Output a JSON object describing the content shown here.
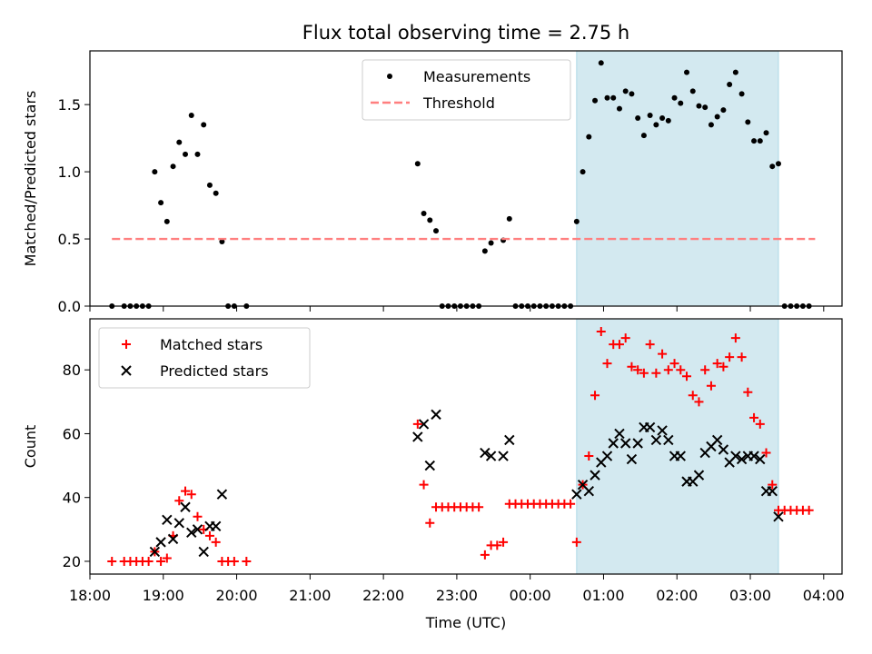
{
  "title": "Flux total observing time = 2.75 h",
  "chart_data": [
    {
      "type": "scatter",
      "ylabel": "Matched/Predicted stars",
      "xlim": [
        "18:00",
        "04:15"
      ],
      "ylim": [
        0,
        1.9
      ],
      "yticks": [
        0.0,
        0.5,
        1.0,
        1.5
      ],
      "yticklabels": [
        "0.0",
        "0.5",
        "1.0",
        "1.5"
      ],
      "shaded_interval": [
        "00:38",
        "03:23"
      ],
      "legend_position": "upper-center",
      "series": [
        {
          "name": "Measurements",
          "marker": "dot",
          "color": "#000000",
          "points": [
            [
              "18:18",
              0
            ],
            [
              "18:28",
              0
            ],
            [
              "18:33",
              0
            ],
            [
              "18:38",
              0
            ],
            [
              "18:43",
              0
            ],
            [
              "18:48",
              0
            ],
            [
              "18:53",
              1.0
            ],
            [
              "18:58",
              0.77
            ],
            [
              "19:03",
              0.63
            ],
            [
              "19:08",
              1.04
            ],
            [
              "19:13",
              1.22
            ],
            [
              "19:18",
              1.13
            ],
            [
              "19:23",
              1.42
            ],
            [
              "19:28",
              1.13
            ],
            [
              "19:33",
              1.35
            ],
            [
              "19:38",
              0.9
            ],
            [
              "19:43",
              0.84
            ],
            [
              "19:48",
              0.48
            ],
            [
              "19:53",
              0
            ],
            [
              "19:58",
              0
            ],
            [
              "20:08",
              0
            ],
            [
              "22:28",
              1.06
            ],
            [
              "22:33",
              0.69
            ],
            [
              "22:38",
              0.64
            ],
            [
              "22:43",
              0.56
            ],
            [
              "22:48",
              0
            ],
            [
              "22:53",
              0
            ],
            [
              "22:58",
              0
            ],
            [
              "23:03",
              0
            ],
            [
              "23:08",
              0
            ],
            [
              "23:13",
              0
            ],
            [
              "23:18",
              0
            ],
            [
              "23:23",
              0.41
            ],
            [
              "23:28",
              0.47
            ],
            [
              "23:38",
              0.49
            ],
            [
              "23:43",
              0.65
            ],
            [
              "23:48",
              0
            ],
            [
              "23:53",
              0
            ],
            [
              "23:58",
              0
            ],
            [
              "00:03",
              0
            ],
            [
              "00:08",
              0
            ],
            [
              "00:13",
              0
            ],
            [
              "00:18",
              0
            ],
            [
              "00:23",
              0
            ],
            [
              "00:28",
              0
            ],
            [
              "00:33",
              0
            ],
            [
              "00:38",
              0.63
            ],
            [
              "00:43",
              1.0
            ],
            [
              "00:48",
              1.26
            ],
            [
              "00:53",
              1.53
            ],
            [
              "00:58",
              1.81
            ],
            [
              "01:03",
              1.55
            ],
            [
              "01:08",
              1.55
            ],
            [
              "01:13",
              1.47
            ],
            [
              "01:18",
              1.6
            ],
            [
              "01:23",
              1.58
            ],
            [
              "01:28",
              1.4
            ],
            [
              "01:33",
              1.27
            ],
            [
              "01:38",
              1.42
            ],
            [
              "01:43",
              1.35
            ],
            [
              "01:48",
              1.4
            ],
            [
              "01:53",
              1.38
            ],
            [
              "01:58",
              1.55
            ],
            [
              "02:03",
              1.51
            ],
            [
              "02:08",
              1.74
            ],
            [
              "02:13",
              1.6
            ],
            [
              "02:18",
              1.49
            ],
            [
              "02:23",
              1.48
            ],
            [
              "02:28",
              1.35
            ],
            [
              "02:33",
              1.41
            ],
            [
              "02:38",
              1.46
            ],
            [
              "02:43",
              1.65
            ],
            [
              "02:48",
              1.74
            ],
            [
              "02:53",
              1.58
            ],
            [
              "02:58",
              1.37
            ],
            [
              "03:03",
              1.23
            ],
            [
              "03:08",
              1.23
            ],
            [
              "03:13",
              1.29
            ],
            [
              "03:18",
              1.04
            ],
            [
              "03:23",
              1.06
            ],
            [
              "03:28",
              0
            ],
            [
              "03:33",
              0
            ],
            [
              "03:38",
              0
            ],
            [
              "03:43",
              0
            ],
            [
              "03:48",
              0
            ]
          ]
        },
        {
          "name": "Threshold",
          "line": "dashed",
          "color": "#ff7f7f",
          "points": [
            [
              "18:18",
              0.5
            ],
            [
              "03:53",
              0.5
            ]
          ]
        }
      ]
    },
    {
      "type": "scatter",
      "xlabel": "Time (UTC)",
      "ylabel": "Count",
      "xlim": [
        "18:00",
        "04:15"
      ],
      "ylim": [
        16,
        96
      ],
      "xticks": [
        "18:00",
        "19:00",
        "20:00",
        "21:00",
        "22:00",
        "23:00",
        "00:00",
        "01:00",
        "02:00",
        "03:00",
        "04:00"
      ],
      "yticks": [
        20,
        40,
        60,
        80
      ],
      "shaded_interval": [
        "00:38",
        "03:23"
      ],
      "legend_position": "upper-left",
      "series": [
        {
          "name": "Matched stars",
          "marker": "plus",
          "color": "#ff0000",
          "points": [
            [
              "18:18",
              20
            ],
            [
              "18:28",
              20
            ],
            [
              "18:33",
              20
            ],
            [
              "18:38",
              20
            ],
            [
              "18:43",
              20
            ],
            [
              "18:48",
              20
            ],
            [
              "18:53",
              23
            ],
            [
              "18:58",
              20
            ],
            [
              "19:03",
              21
            ],
            [
              "19:08",
              28
            ],
            [
              "19:13",
              39
            ],
            [
              "19:18",
              42
            ],
            [
              "19:23",
              41
            ],
            [
              "19:28",
              34
            ],
            [
              "19:33",
              30
            ],
            [
              "19:38",
              28
            ],
            [
              "19:43",
              26
            ],
            [
              "19:48",
              20
            ],
            [
              "19:53",
              20
            ],
            [
              "19:58",
              20
            ],
            [
              "20:08",
              20
            ],
            [
              "22:28",
              63
            ],
            [
              "22:33",
              44
            ],
            [
              "22:38",
              32
            ],
            [
              "22:43",
              37
            ],
            [
              "22:48",
              37
            ],
            [
              "22:53",
              37
            ],
            [
              "22:58",
              37
            ],
            [
              "23:03",
              37
            ],
            [
              "23:08",
              37
            ],
            [
              "23:13",
              37
            ],
            [
              "23:18",
              37
            ],
            [
              "23:23",
              22
            ],
            [
              "23:28",
              25
            ],
            [
              "23:33",
              25
            ],
            [
              "23:38",
              26
            ],
            [
              "23:43",
              38
            ],
            [
              "23:48",
              38
            ],
            [
              "23:53",
              38
            ],
            [
              "23:58",
              38
            ],
            [
              "00:03",
              38
            ],
            [
              "00:08",
              38
            ],
            [
              "00:13",
              38
            ],
            [
              "00:18",
              38
            ],
            [
              "00:23",
              38
            ],
            [
              "00:28",
              38
            ],
            [
              "00:33",
              38
            ],
            [
              "00:38",
              26
            ],
            [
              "00:43",
              44
            ],
            [
              "00:48",
              53
            ],
            [
              "00:53",
              72
            ],
            [
              "00:58",
              92
            ],
            [
              "01:03",
              82
            ],
            [
              "01:08",
              88
            ],
            [
              "01:13",
              88
            ],
            [
              "01:18",
              90
            ],
            [
              "01:23",
              81
            ],
            [
              "01:28",
              80
            ],
            [
              "01:33",
              79
            ],
            [
              "01:38",
              88
            ],
            [
              "01:43",
              79
            ],
            [
              "01:48",
              85
            ],
            [
              "01:53",
              80
            ],
            [
              "01:58",
              82
            ],
            [
              "02:03",
              80
            ],
            [
              "02:08",
              78
            ],
            [
              "02:13",
              72
            ],
            [
              "02:18",
              70
            ],
            [
              "02:23",
              80
            ],
            [
              "02:28",
              75
            ],
            [
              "02:33",
              82
            ],
            [
              "02:38",
              81
            ],
            [
              "02:43",
              84
            ],
            [
              "02:48",
              90
            ],
            [
              "02:53",
              84
            ],
            [
              "02:58",
              73
            ],
            [
              "03:03",
              65
            ],
            [
              "03:08",
              63
            ],
            [
              "03:13",
              54
            ],
            [
              "03:18",
              44
            ],
            [
              "03:23",
              36
            ],
            [
              "03:28",
              36
            ],
            [
              "03:33",
              36
            ],
            [
              "03:38",
              36
            ],
            [
              "03:43",
              36
            ],
            [
              "03:48",
              36
            ]
          ]
        },
        {
          "name": "Predicted stars",
          "marker": "x",
          "color": "#000000",
          "points": [
            [
              "18:53",
              23
            ],
            [
              "18:58",
              26
            ],
            [
              "19:03",
              33
            ],
            [
              "19:08",
              27
            ],
            [
              "19:13",
              32
            ],
            [
              "19:18",
              37
            ],
            [
              "19:23",
              29
            ],
            [
              "19:28",
              30
            ],
            [
              "19:33",
              23
            ],
            [
              "19:38",
              31
            ],
            [
              "19:43",
              31
            ],
            [
              "19:48",
              41
            ],
            [
              "22:28",
              59
            ],
            [
              "22:33",
              63
            ],
            [
              "22:38",
              50
            ],
            [
              "22:43",
              66
            ],
            [
              "23:23",
              54
            ],
            [
              "23:28",
              53
            ],
            [
              "23:38",
              53
            ],
            [
              "23:43",
              58
            ],
            [
              "00:38",
              41
            ],
            [
              "00:43",
              44
            ],
            [
              "00:48",
              42
            ],
            [
              "00:53",
              47
            ],
            [
              "00:58",
              51
            ],
            [
              "01:03",
              53
            ],
            [
              "01:08",
              57
            ],
            [
              "01:13",
              60
            ],
            [
              "01:18",
              57
            ],
            [
              "01:23",
              52
            ],
            [
              "01:28",
              57
            ],
            [
              "01:33",
              62
            ],
            [
              "01:38",
              62
            ],
            [
              "01:43",
              58
            ],
            [
              "01:48",
              61
            ],
            [
              "01:53",
              58
            ],
            [
              "01:58",
              53
            ],
            [
              "02:03",
              53
            ],
            [
              "02:08",
              45
            ],
            [
              "02:13",
              45
            ],
            [
              "02:18",
              47
            ],
            [
              "02:23",
              54
            ],
            [
              "02:28",
              56
            ],
            [
              "02:33",
              58
            ],
            [
              "02:38",
              55
            ],
            [
              "02:43",
              51
            ],
            [
              "02:48",
              53
            ],
            [
              "02:53",
              52
            ],
            [
              "02:58",
              53
            ],
            [
              "03:03",
              53
            ],
            [
              "03:08",
              52
            ],
            [
              "03:13",
              42
            ],
            [
              "03:18",
              42
            ],
            [
              "03:23",
              34
            ]
          ]
        }
      ]
    }
  ]
}
